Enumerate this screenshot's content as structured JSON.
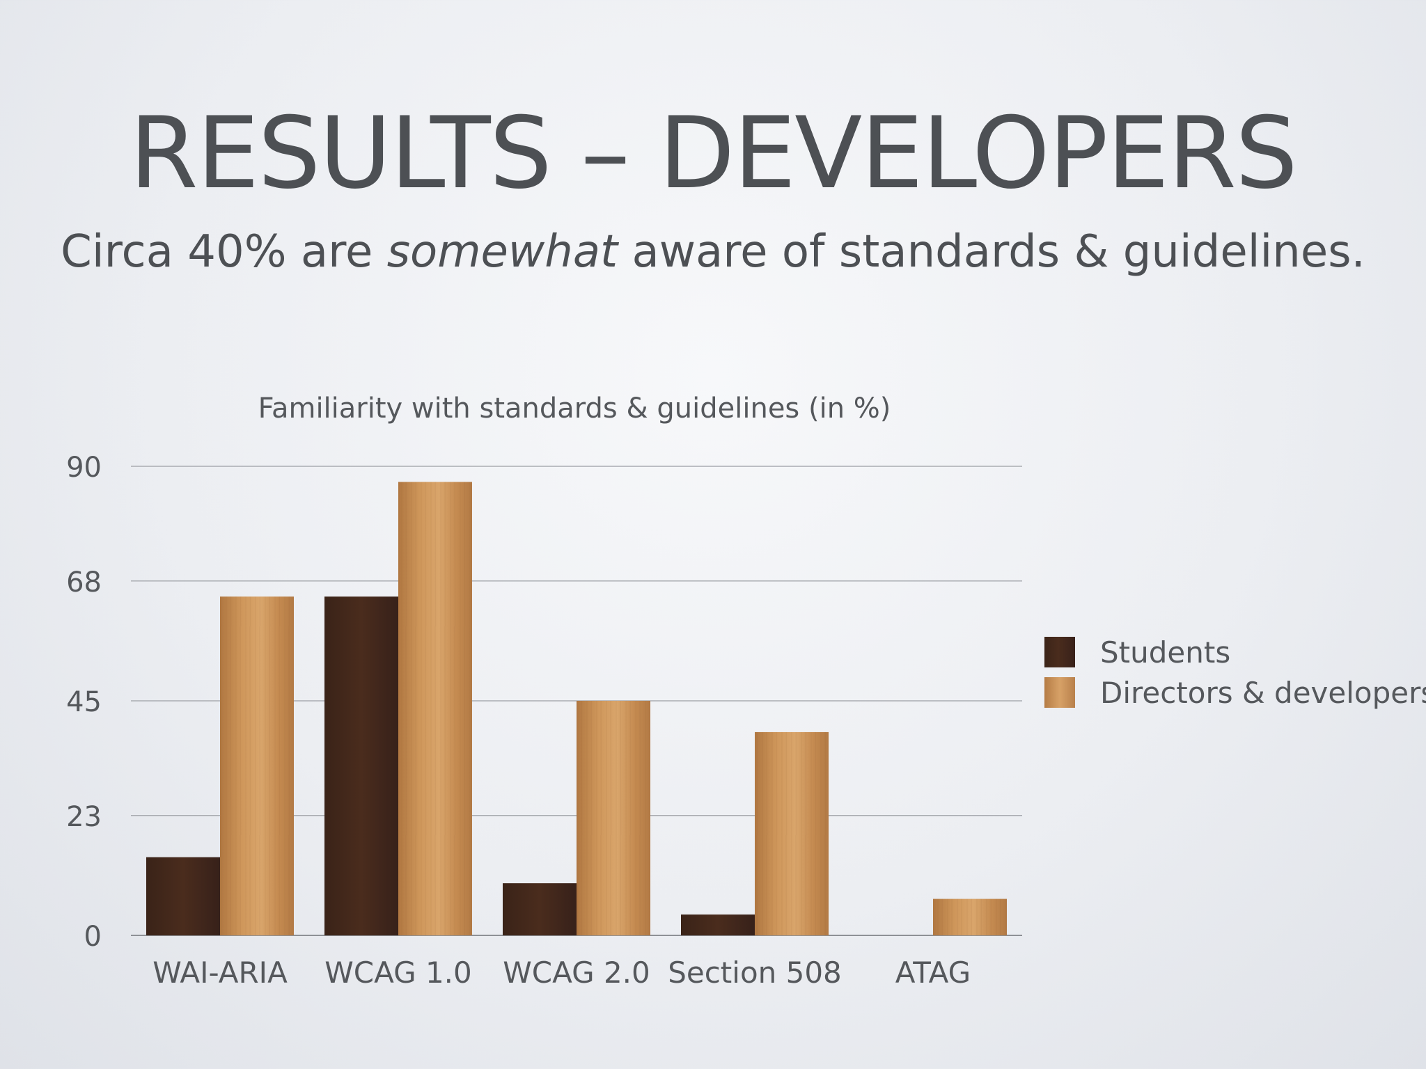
{
  "slide": {
    "title": "RESULTS – DEVELOPERS",
    "subtitle_before": "Circa 40% are ",
    "subtitle_emphasis": "somewhat",
    "subtitle_after": " aware of standards & guidelines."
  },
  "chart_data": {
    "type": "bar",
    "title": "Familiarity with standards & guidelines (in %)",
    "xlabel": "",
    "ylabel": "",
    "categories": [
      "WAI-ARIA",
      "WCAG 1.0",
      "WCAG 2.0",
      "Section 508",
      "ATAG"
    ],
    "series": [
      {
        "name": "Students",
        "values": [
          15,
          65,
          10,
          4,
          0
        ],
        "color": "#43281b"
      },
      {
        "name": "Directors & developers",
        "values": [
          65,
          87,
          45,
          39,
          7
        ],
        "color": "#c8904f"
      }
    ],
    "y_ticks": [
      "0",
      "23",
      "45",
      "68",
      "90"
    ],
    "ylim": [
      0,
      90
    ],
    "grid": true,
    "legend_position": "right"
  }
}
